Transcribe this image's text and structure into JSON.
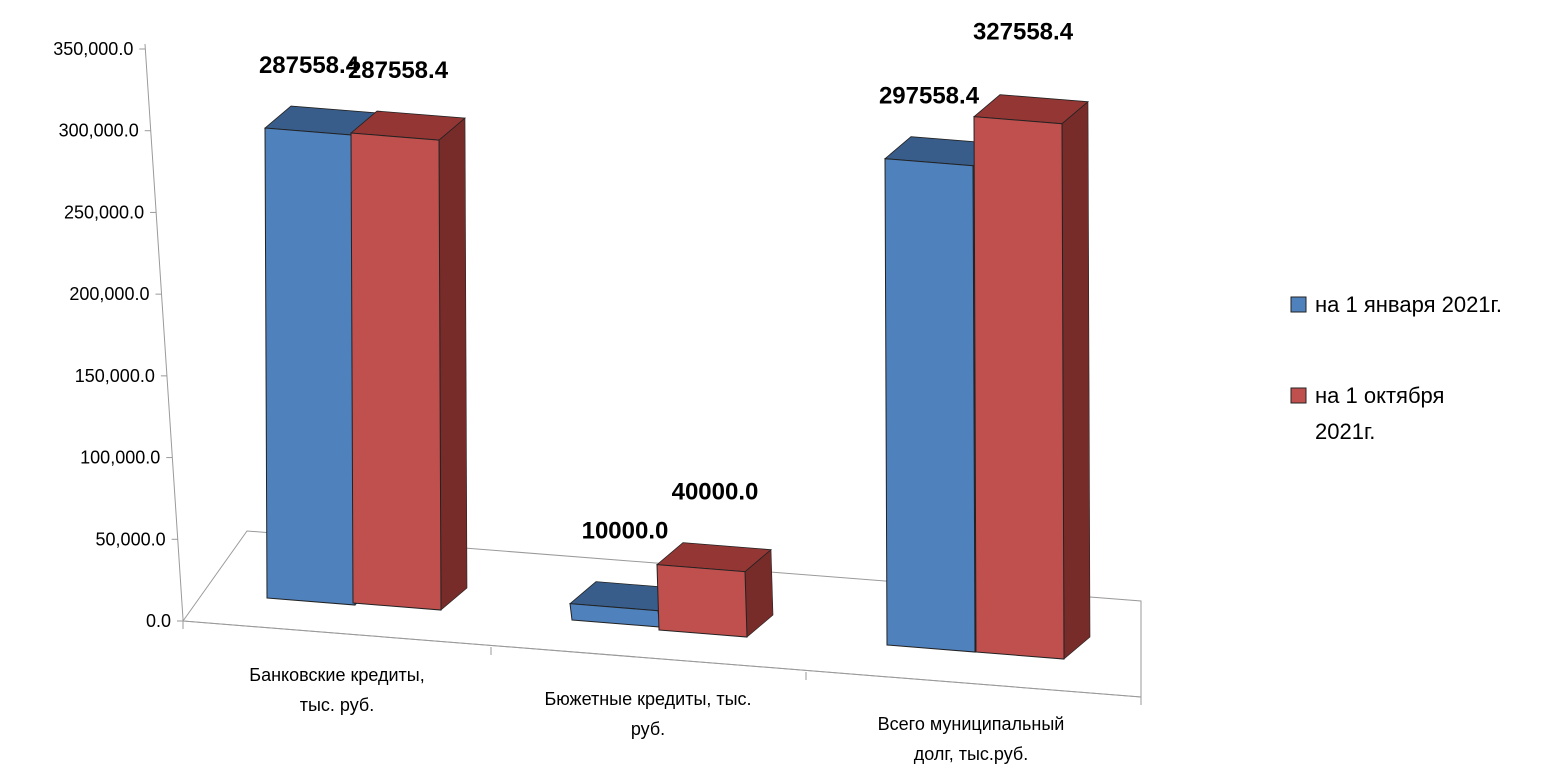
{
  "chart_data": {
    "type": "bar",
    "categories": [
      [
        "Банковские кредиты,",
        "тыс. руб."
      ],
      [
        "Бюжетные кредиты, тыс.",
        "руб."
      ],
      [
        "Всего муниципальный",
        "долг, тыс.руб."
      ]
    ],
    "series": [
      {
        "name": "на 1 января 2021г.",
        "values": [
          287558.4,
          10000.0,
          297558.4
        ],
        "labels": [
          "287558.4",
          "10000.0",
          "297558.4"
        ],
        "color": "#4F81BD",
        "top_color": "#385D8A",
        "side_color": "#2C4D75"
      },
      {
        "name": "на 1 октября 2021г.",
        "name_lines": [
          "на 1 октября",
          "2021г."
        ],
        "values": [
          287558.4,
          40000.0,
          327558.4
        ],
        "labels": [
          "287558.4",
          "40000.0",
          "327558.4"
        ],
        "color": "#C0504D",
        "top_color": "#943634",
        "side_color": "#772C2A"
      }
    ],
    "y_ticks": [
      0,
      50000,
      100000,
      150000,
      200000,
      250000,
      300000,
      350000
    ],
    "y_tick_labels": [
      "0.0",
      "50,000.0",
      "100,000.0",
      "150,000.0",
      "200,000.0",
      "250,000.0",
      "300,000.0",
      "350,000.0"
    ],
    "ylim": [
      0,
      350000
    ],
    "grid": false,
    "legend_position": "right",
    "style": "3d-clustered-column"
  }
}
